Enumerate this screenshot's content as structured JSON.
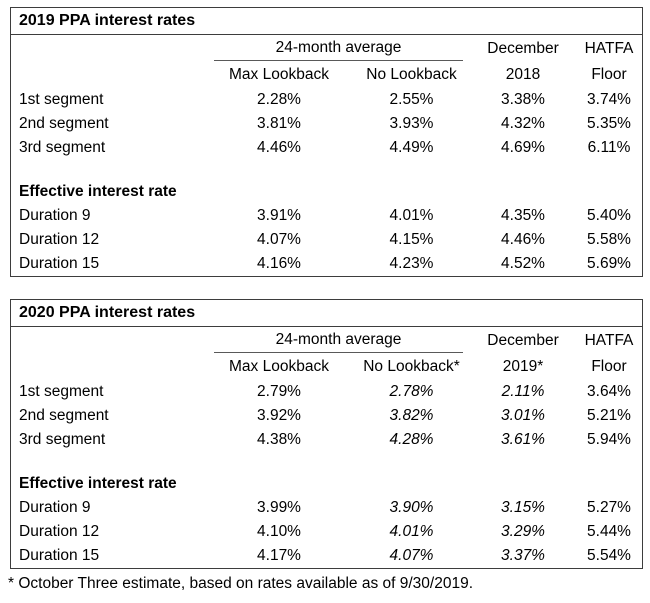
{
  "footnote": "* October Three estimate, based on rates available as of 9/30/2019.",
  "colors": {
    "background": "#ffffff",
    "text": "#000000",
    "table_border": "#3d3d3d",
    "group_underline": "#595959"
  },
  "tables": [
    {
      "title": "2019 PPA interest rates",
      "group_header": "24-month average",
      "headers": {
        "max_lookback": "Max Lookback",
        "no_lookback": "No Lookback",
        "december_line1": "December",
        "december_line2": "2018",
        "hatfa_line1": "HATFA",
        "hatfa_line2": "Floor"
      },
      "section_header": "Effective interest rate",
      "rows": [
        {
          "label": "1st segment",
          "max_lookback": "2.28%",
          "no_lookback": "2.55%",
          "december": "3.38%",
          "hatfa": "3.74%"
        },
        {
          "label": "2nd segment",
          "max_lookback": "3.81%",
          "no_lookback": "3.93%",
          "december": "4.32%",
          "hatfa": "5.35%"
        },
        {
          "label": "3rd segment",
          "max_lookback": "4.46%",
          "no_lookback": "4.49%",
          "december": "4.69%",
          "hatfa": "6.11%"
        }
      ],
      "duration_rows": [
        {
          "label": "Duration 9",
          "max_lookback": "3.91%",
          "no_lookback": "4.01%",
          "december": "4.35%",
          "hatfa": "5.40%"
        },
        {
          "label": "Duration 12",
          "max_lookback": "4.07%",
          "no_lookback": "4.15%",
          "december": "4.46%",
          "hatfa": "5.58%"
        },
        {
          "label": "Duration 15",
          "max_lookback": "4.16%",
          "no_lookback": "4.23%",
          "december": "4.52%",
          "hatfa": "5.69%"
        }
      ]
    },
    {
      "title": "2020 PPA interest rates",
      "group_header": "24-month average",
      "headers": {
        "max_lookback": "Max Lookback",
        "no_lookback": "No Lookback*",
        "december_line1": "December",
        "december_line2": "2019*",
        "hatfa_line1": "HATFA",
        "hatfa_line2": "Floor"
      },
      "section_header": "Effective interest rate",
      "rows": [
        {
          "label": "1st segment",
          "max_lookback": "2.79%",
          "no_lookback": "2.78%",
          "december": "2.11%",
          "hatfa": "3.64%"
        },
        {
          "label": "2nd segment",
          "max_lookback": "3.92%",
          "no_lookback": "3.82%",
          "december": "3.01%",
          "hatfa": "5.21%"
        },
        {
          "label": "3rd segment",
          "max_lookback": "4.38%",
          "no_lookback": "4.28%",
          "december": "3.61%",
          "hatfa": "5.94%"
        }
      ],
      "duration_rows": [
        {
          "label": "Duration 9",
          "max_lookback": "3.99%",
          "no_lookback": "3.90%",
          "december": "3.15%",
          "hatfa": "5.27%"
        },
        {
          "label": "Duration 12",
          "max_lookback": "4.10%",
          "no_lookback": "4.01%",
          "december": "3.29%",
          "hatfa": "5.44%"
        },
        {
          "label": "Duration 15",
          "max_lookback": "4.17%",
          "no_lookback": "4.07%",
          "december": "3.37%",
          "hatfa": "5.54%"
        }
      ]
    }
  ]
}
